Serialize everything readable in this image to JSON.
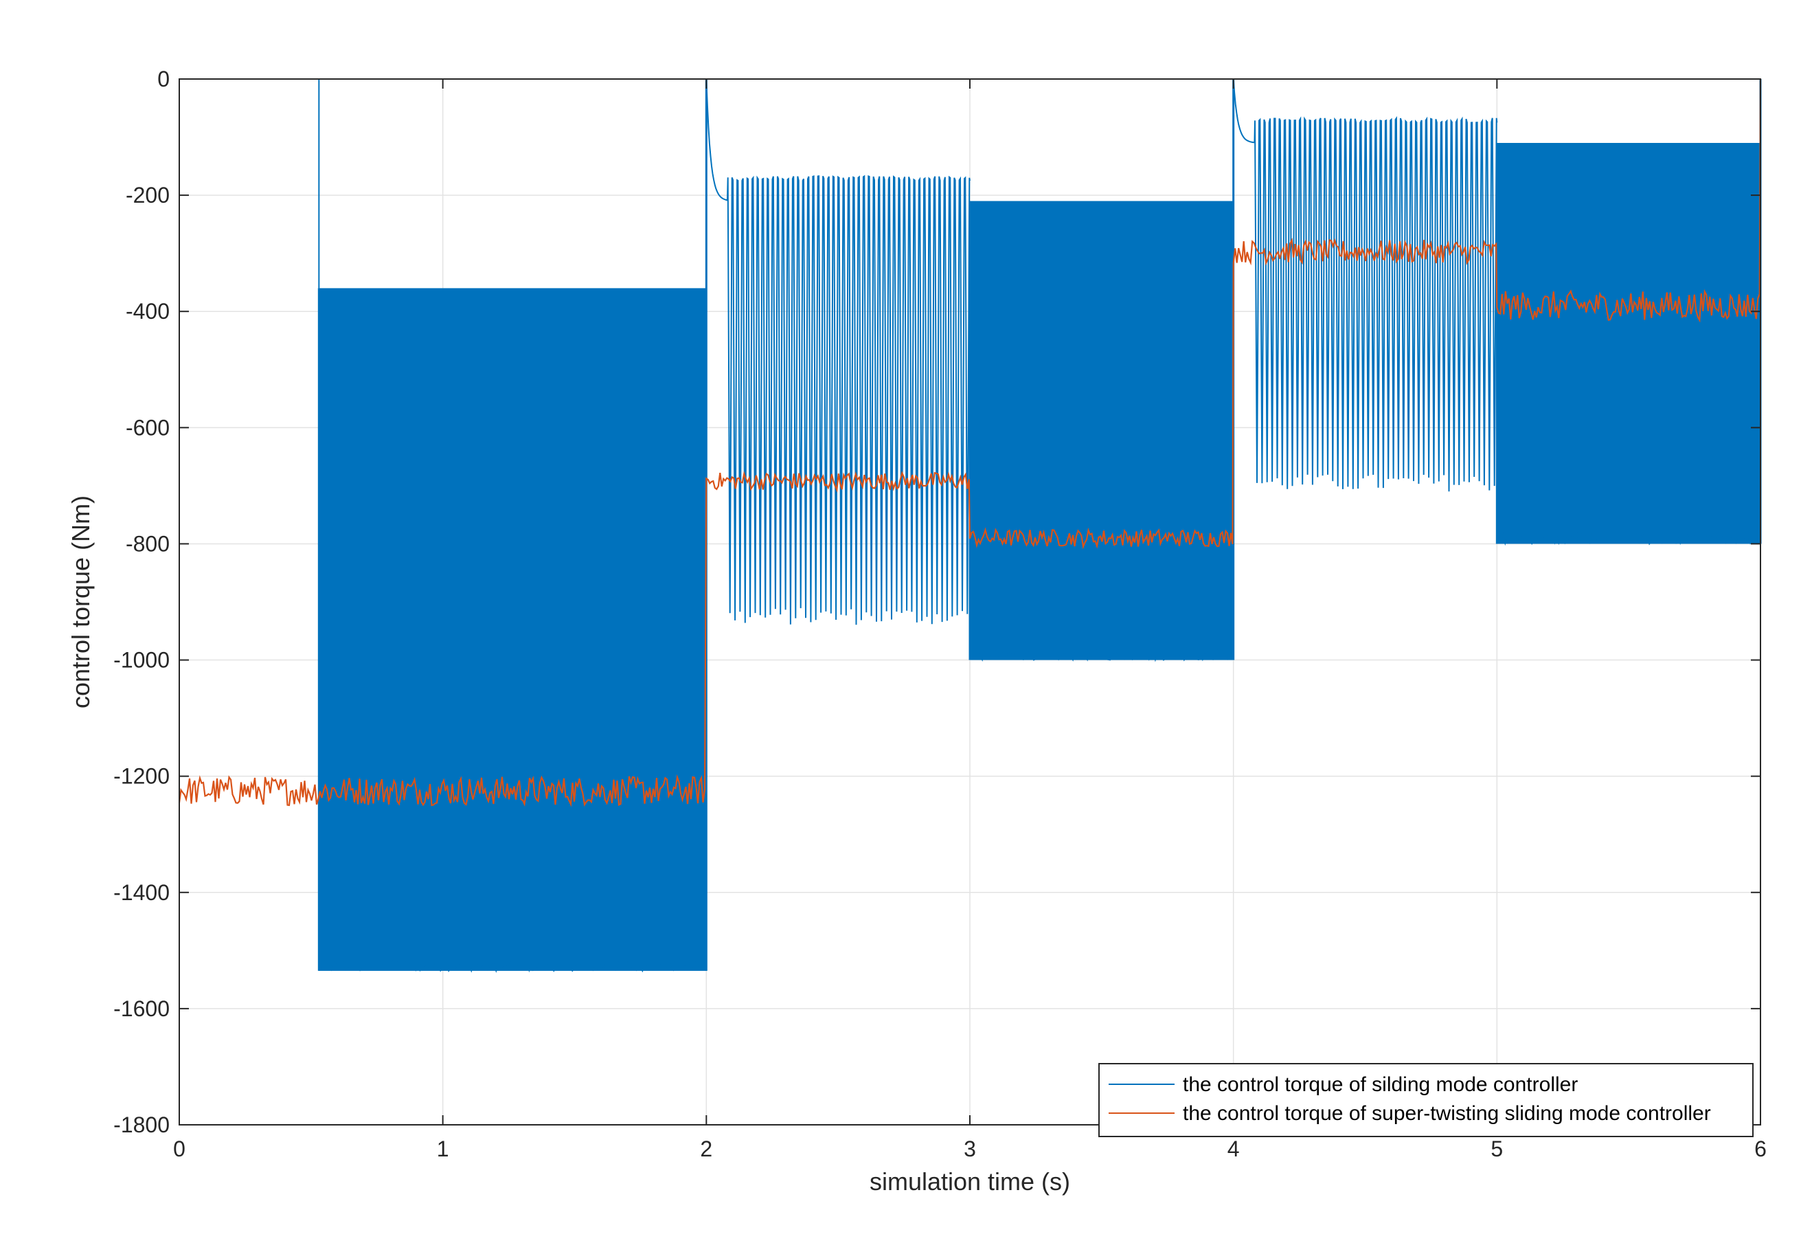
{
  "chart_data": {
    "type": "line",
    "title": "",
    "xlabel": "simulation time (s)",
    "ylabel": "control torque (Nm)",
    "xlim": [
      0,
      6
    ],
    "ylim": [
      -1800,
      0
    ],
    "xticks": [
      0,
      1,
      2,
      3,
      4,
      5,
      6
    ],
    "yticks": [
      0,
      -200,
      -400,
      -600,
      -800,
      -1000,
      -1200,
      -1400,
      -1600,
      -1800
    ],
    "grid": true,
    "legend_position": "bottom-right",
    "series": [
      {
        "name": "the control torque of silding mode controller",
        "color": "#0072BD",
        "style": "chattering",
        "segments": [
          {
            "t0": 0.0,
            "t1": 0.53,
            "mode": "flat",
            "value": 0
          },
          {
            "t0": 0.53,
            "t1": 2.0,
            "mode": "dense_band",
            "min": -1535,
            "max": -360
          },
          {
            "t0": 2.0,
            "t1": 3.0,
            "mode": "spikes",
            "base": -175,
            "spike_min": -940,
            "settle_from": 0,
            "settle_to": -210
          },
          {
            "t0": 3.0,
            "t1": 4.0,
            "mode": "dense_band",
            "min": -1000,
            "max": -210
          },
          {
            "t0": 4.0,
            "t1": 5.0,
            "mode": "spikes",
            "base": -75,
            "spike_min": -710,
            "settle_from": 0,
            "settle_to": -110
          },
          {
            "t0": 5.0,
            "t1": 6.0,
            "mode": "dense_band",
            "min": -800,
            "max": -110
          }
        ]
      },
      {
        "name": "the control torque of super-twisting sliding mode controller",
        "color": "#D95319",
        "style": "noisy",
        "segments": [
          {
            "t0": 0.0,
            "t1": 2.0,
            "center": -1225,
            "amplitude": 25
          },
          {
            "t0": 2.0,
            "t1": 3.0,
            "center": -692,
            "amplitude": 15
          },
          {
            "t0": 3.0,
            "t1": 4.0,
            "center": -790,
            "amplitude": 15
          },
          {
            "t0": 4.0,
            "t1": 5.0,
            "center": -297,
            "amplitude": 20
          },
          {
            "t0": 5.0,
            "t1": 6.0,
            "center": -390,
            "amplitude": 25
          }
        ]
      }
    ]
  }
}
